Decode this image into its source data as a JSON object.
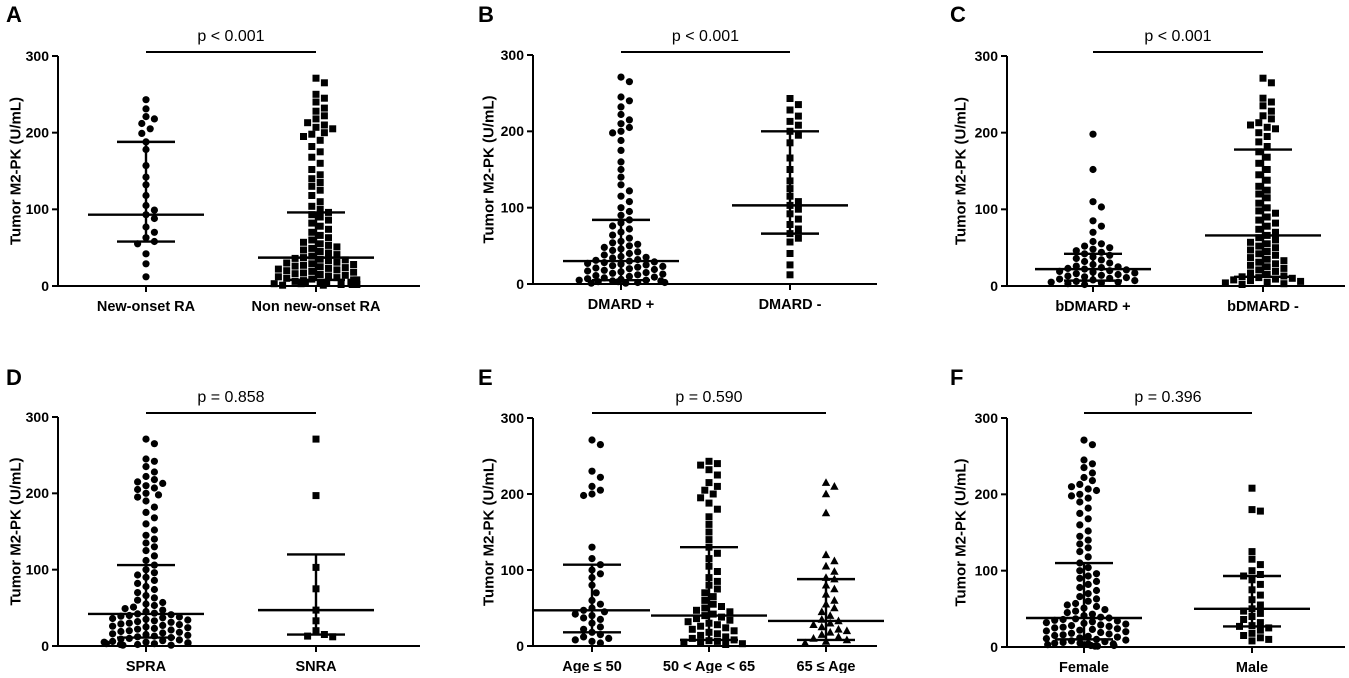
{
  "colors": {
    "ink": "#000000",
    "background": "#ffffff"
  },
  "chart_data": [
    {
      "panel": "A",
      "type": "scatter",
      "subtype": "dot-plot with median and IQR",
      "ylabel": "Tumor  M2-PK (U/mL)",
      "ylim": [
        0,
        300
      ],
      "yticks": [
        0,
        100,
        200,
        300
      ],
      "categories": [
        "New-onset RA",
        "Non new-onset RA"
      ],
      "comparison": {
        "text": "p < 0.001",
        "from": 0,
        "to": 1
      },
      "groups": [
        {
          "name": "New-onset RA",
          "marker": "circle",
          "median": 93,
          "q1": 58,
          "q3": 188,
          "values": [
            243,
            231,
            221,
            218,
            212,
            205,
            199,
            188,
            178,
            157,
            142,
            132,
            118,
            105,
            99,
            93,
            88,
            77,
            70,
            63,
            58,
            55,
            42,
            29,
            12
          ]
        },
        {
          "name": "Non new-onset RA",
          "marker": "square",
          "median": 37,
          "q1": 8,
          "q3": 96,
          "values": [
            271,
            265,
            250,
            245,
            240,
            232,
            228,
            222,
            218,
            213,
            210,
            207,
            205,
            200,
            198,
            195,
            190,
            182,
            175,
            168,
            160,
            152,
            145,
            140,
            135,
            130,
            125,
            118,
            110,
            104,
            100,
            96,
            93,
            90,
            86,
            82,
            78,
            74,
            70,
            66,
            63,
            60,
            57,
            55,
            53,
            51,
            49,
            47,
            45,
            43,
            41,
            39,
            37,
            36,
            35,
            34,
            33,
            31,
            30,
            29,
            28,
            27,
            26,
            25,
            24,
            23,
            22,
            21,
            20,
            19,
            18,
            17,
            16,
            15,
            14,
            13,
            12,
            11,
            10,
            9,
            8,
            8,
            7,
            6,
            5,
            5,
            4,
            4,
            3,
            3,
            2,
            2,
            2,
            1,
            1
          ]
        }
      ]
    },
    {
      "panel": "B",
      "type": "scatter",
      "subtype": "dot-plot with median and IQR",
      "ylabel": "Tumor  M2-PK (U/mL)",
      "ylim": [
        0,
        300
      ],
      "yticks": [
        0,
        100,
        200,
        300
      ],
      "categories": [
        "DMARD +",
        "DMARD -"
      ],
      "comparison": {
        "text": "p < 0.001",
        "from": 0,
        "to": 1
      },
      "groups": [
        {
          "name": "DMARD +",
          "marker": "circle",
          "median": 30,
          "q1": 5,
          "q3": 84,
          "values": [
            271,
            265,
            245,
            240,
            232,
            222,
            215,
            210,
            205,
            200,
            198,
            188,
            175,
            160,
            150,
            140,
            130,
            122,
            115,
            108,
            100,
            95,
            90,
            84,
            80,
            76,
            72,
            68,
            64,
            60,
            56,
            54,
            52,
            50,
            48,
            46,
            44,
            42,
            40,
            38,
            36,
            35,
            34,
            32,
            31,
            30,
            29,
            28,
            27,
            26,
            25,
            24,
            23,
            22,
            21,
            20,
            19,
            18,
            17,
            16,
            15,
            14,
            13,
            12,
            11,
            10,
            9,
            8,
            7,
            6,
            5,
            5,
            4,
            4,
            3,
            3,
            2,
            2,
            1,
            1
          ]
        },
        {
          "name": "DMARD -",
          "marker": "square",
          "median": 103,
          "q1": 66,
          "q3": 200,
          "values": [
            243,
            235,
            228,
            220,
            213,
            208,
            200,
            195,
            185,
            165,
            150,
            135,
            125,
            115,
            108,
            103,
            98,
            92,
            85,
            78,
            72,
            66,
            60,
            55,
            40,
            25,
            12
          ]
        }
      ]
    },
    {
      "panel": "C",
      "type": "scatter",
      "subtype": "dot-plot with median and IQR",
      "ylabel": "Tumor  M2-PK (U/mL)",
      "ylim": [
        0,
        300
      ],
      "yticks": [
        0,
        100,
        200,
        300
      ],
      "categories": [
        "bDMARD +",
        "bDMARD -"
      ],
      "comparison": {
        "text": "p < 0.001",
        "from": 0,
        "to": 1
      },
      "groups": [
        {
          "name": "bDMARD +",
          "marker": "circle",
          "median": 22,
          "q1": 7,
          "q3": 42,
          "values": [
            198,
            152,
            110,
            103,
            85,
            78,
            70,
            58,
            55,
            52,
            50,
            48,
            46,
            44,
            42,
            40,
            38,
            36,
            34,
            32,
            30,
            28,
            26,
            25,
            24,
            23,
            22,
            21,
            20,
            19,
            18,
            17,
            16,
            15,
            14,
            13,
            12,
            11,
            10,
            9,
            8,
            7,
            6,
            5,
            5,
            4,
            3,
            2
          ]
        },
        {
          "name": "bDMARD -",
          "marker": "square",
          "median": 66,
          "q1": 12,
          "q3": 178,
          "values": [
            271,
            265,
            245,
            240,
            235,
            228,
            222,
            218,
            213,
            210,
            207,
            205,
            200,
            195,
            188,
            182,
            175,
            168,
            160,
            152,
            145,
            138,
            130,
            125,
            120,
            115,
            108,
            102,
            98,
            95,
            90,
            86,
            82,
            78,
            74,
            70,
            66,
            63,
            60,
            57,
            55,
            52,
            50,
            47,
            45,
            42,
            40,
            37,
            35,
            33,
            31,
            29,
            27,
            25,
            23,
            21,
            19,
            17,
            15,
            13,
            12,
            11,
            10,
            9,
            8,
            7,
            6,
            5,
            4,
            3,
            2
          ]
        }
      ]
    },
    {
      "panel": "D",
      "type": "scatter",
      "subtype": "dot-plot with median and IQR",
      "ylabel": "Tumor  M2-PK (U/mL)",
      "ylim": [
        0,
        300
      ],
      "yticks": [
        0,
        100,
        200,
        300
      ],
      "categories": [
        "SPRA",
        "SNRA"
      ],
      "comparison": {
        "text": "p = 0.858",
        "from": 0,
        "to": 1
      },
      "groups": [
        {
          "name": "SPRA",
          "marker": "circle",
          "median": 42,
          "q1": 11,
          "q3": 106,
          "values": [
            271,
            265,
            245,
            242,
            235,
            228,
            222,
            218,
            215,
            213,
            210,
            207,
            205,
            200,
            198,
            195,
            190,
            182,
            175,
            168,
            160,
            152,
            145,
            140,
            135,
            130,
            125,
            118,
            112,
            106,
            100,
            96,
            93,
            90,
            86,
            82,
            78,
            74,
            70,
            66,
            63,
            60,
            57,
            55,
            53,
            51,
            49,
            47,
            45,
            43,
            42,
            41,
            40,
            39,
            38,
            37,
            36,
            35,
            34,
            33,
            32,
            31,
            30,
            29,
            28,
            27,
            26,
            25,
            24,
            23,
            22,
            21,
            20,
            19,
            18,
            17,
            16,
            15,
            14,
            13,
            12,
            11,
            10,
            9,
            8,
            7,
            6,
            5,
            5,
            4,
            4,
            3,
            3,
            2,
            2,
            1,
            1
          ]
        },
        {
          "name": "SNRA",
          "marker": "square",
          "median": 47,
          "q1": 15,
          "q3": 120,
          "values": [
            271,
            197,
            103,
            75,
            47,
            33,
            20,
            15,
            13,
            12
          ]
        }
      ]
    },
    {
      "panel": "E",
      "type": "scatter",
      "subtype": "dot-plot with median and IQR",
      "ylabel": "Tumor  M2-PK (U/mL)",
      "ylim": [
        0,
        300
      ],
      "yticks": [
        0,
        100,
        200,
        300
      ],
      "categories": [
        "Age  ≤ 50",
        "50 < Age < 65",
        "65 ≤ Age"
      ],
      "comparison": {
        "text": "p = 0.590",
        "from": 0,
        "to": 2
      },
      "groups": [
        {
          "name": "Age  ≤ 50",
          "marker": "circle",
          "median": 47,
          "q1": 18,
          "q3": 107,
          "values": [
            271,
            265,
            230,
            222,
            210,
            205,
            200,
            198,
            130,
            115,
            107,
            100,
            95,
            90,
            80,
            70,
            60,
            55,
            50,
            47,
            45,
            42,
            40,
            37,
            35,
            30,
            25,
            22,
            18,
            15,
            12,
            10,
            8,
            6,
            4
          ]
        },
        {
          "name": "50 < Age < 65",
          "marker": "square",
          "median": 40,
          "q1": 8,
          "q3": 130,
          "values": [
            243,
            240,
            238,
            232,
            225,
            215,
            210,
            205,
            200,
            195,
            188,
            180,
            170,
            160,
            150,
            140,
            130,
            122,
            115,
            105,
            98,
            90,
            85,
            80,
            75,
            70,
            65,
            60,
            55,
            52,
            50,
            47,
            45,
            42,
            40,
            38,
            36,
            34,
            32,
            30,
            28,
            26,
            24,
            22,
            20,
            18,
            16,
            14,
            12,
            10,
            8,
            7,
            6,
            5,
            4,
            3,
            2
          ]
        },
        {
          "name": "65 ≤ Age",
          "marker": "triangle",
          "median": 33,
          "q1": 8,
          "q3": 88,
          "values": [
            215,
            210,
            200,
            175,
            120,
            112,
            105,
            98,
            90,
            88,
            80,
            75,
            68,
            60,
            55,
            50,
            45,
            40,
            35,
            33,
            30,
            28,
            25,
            22,
            20,
            18,
            15,
            12,
            10,
            8,
            6,
            4
          ]
        }
      ]
    },
    {
      "panel": "F",
      "type": "scatter",
      "subtype": "dot-plot with median and IQR",
      "ylabel": "Tumor  M2-PK (U/mL)",
      "ylim": [
        0,
        300
      ],
      "yticks": [
        0,
        100,
        200,
        300
      ],
      "categories": [
        "Female",
        "Male"
      ],
      "comparison": {
        "text": "p = 0.396",
        "from": 0,
        "to": 1
      },
      "groups": [
        {
          "name": "Female",
          "marker": "circle",
          "median": 38,
          "q1": 10,
          "q3": 110,
          "values": [
            271,
            265,
            245,
            240,
            235,
            228,
            222,
            218,
            213,
            210,
            207,
            205,
            200,
            198,
            195,
            190,
            182,
            175,
            168,
            160,
            152,
            145,
            140,
            135,
            130,
            125,
            118,
            110,
            104,
            100,
            96,
            93,
            90,
            86,
            82,
            78,
            74,
            70,
            66,
            63,
            60,
            57,
            55,
            53,
            51,
            49,
            47,
            45,
            43,
            41,
            39,
            38,
            37,
            36,
            35,
            34,
            33,
            32,
            31,
            30,
            29,
            28,
            27,
            26,
            25,
            24,
            23,
            22,
            21,
            20,
            19,
            18,
            17,
            16,
            15,
            14,
            13,
            12,
            11,
            10,
            9,
            8,
            7,
            6,
            5,
            5,
            4,
            4,
            3,
            3,
            2,
            2,
            1,
            1
          ]
        },
        {
          "name": "Male",
          "marker": "square",
          "median": 50,
          "q1": 27,
          "q3": 93,
          "values": [
            208,
            180,
            178,
            125,
            115,
            108,
            100,
            95,
            93,
            88,
            82,
            75,
            68,
            62,
            55,
            50,
            47,
            44,
            40,
            36,
            32,
            28,
            27,
            25,
            22,
            18,
            15,
            12,
            10,
            8
          ]
        }
      ]
    }
  ]
}
